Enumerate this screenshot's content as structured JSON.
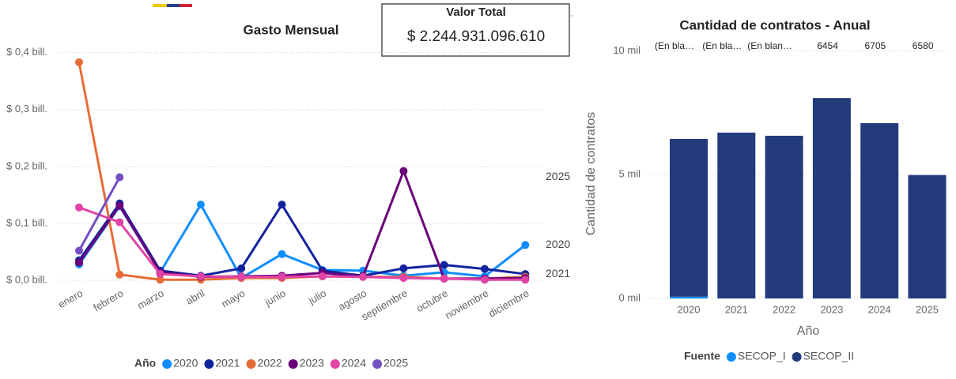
{
  "card": {
    "title": "Valor Total",
    "value": "$ 2.244.931.096.610"
  },
  "chart_data": [
    {
      "type": "line",
      "title": "Gasto Mensual",
      "legend_title": "Año",
      "categories": [
        "enero",
        "febrero",
        "marzo",
        "abril",
        "mayo",
        "junio",
        "julio",
        "agosto",
        "septiembre",
        "octubre",
        "noviembre",
        "diciembre"
      ],
      "ylim": [
        0,
        0.43
      ],
      "yticks": [
        {
          "value": 0,
          "label": "$ 0,0 bill."
        },
        {
          "value": 0.1,
          "label": "$ 0,1 bill."
        },
        {
          "value": 0.2,
          "label": "$ 0,2 bill."
        },
        {
          "value": 0.3,
          "label": "$ 0,3 bill."
        },
        {
          "value": 0.4,
          "label": "$ 0,4 bill."
        }
      ],
      "grid": true,
      "legend": "bottom",
      "series": [
        {
          "name": "2020",
          "color": "#118dff",
          "end_label": true,
          "values": [
            0.028,
            0.13,
            0.014,
            0.133,
            0.004,
            0.046,
            0.018,
            0.017,
            0.008,
            0.014,
            0.007,
            0.062
          ]
        },
        {
          "name": "2021",
          "color": "#12239e",
          "end_label": true,
          "values": [
            0.035,
            0.135,
            0.017,
            0.008,
            0.021,
            0.133,
            0.017,
            0.008,
            0.021,
            0.027,
            0.02,
            0.011
          ]
        },
        {
          "name": "2022",
          "color": "#e66c37",
          "values": [
            0.383,
            0.01,
            0.001,
            0.001,
            0.004,
            0.004,
            0.007,
            0.006,
            0.006,
            0.003,
            0.003,
            0.006
          ]
        },
        {
          "name": "2023",
          "color": "#6b007b",
          "values": [
            0.031,
            0.131,
            0.014,
            0.006,
            0.007,
            0.008,
            0.013,
            0.007,
            0.192,
            0.003,
            0.003,
            0.004
          ]
        },
        {
          "name": "2024",
          "color": "#e044a7",
          "values": [
            0.128,
            0.102,
            0.011,
            0.007,
            0.006,
            0.006,
            0.007,
            0.006,
            0.004,
            0.003,
            0.001,
            0.001
          ]
        },
        {
          "name": "2025",
          "color": "#744ec2",
          "end_label": true,
          "values": [
            0.052,
            0.181,
            null,
            null,
            null,
            null,
            null,
            null,
            null,
            null,
            null,
            null
          ]
        }
      ]
    },
    {
      "type": "bar",
      "stacked": true,
      "title": "Cantidad de contratos - Anual",
      "ylabel": "Cantidad de contratos",
      "xlabel": "Año",
      "legend_title": "Fuente",
      "categories": [
        "2020",
        "2021",
        "2022",
        "2023",
        "2024",
        "2025"
      ],
      "annotations": [
        "(En bla…",
        "(En bla…",
        "(En blan…",
        "6454",
        "6705",
        "6580"
      ],
      "ylim": [
        0,
        10300
      ],
      "yticks": [
        {
          "value": 0,
          "label": "0 mil"
        },
        {
          "value": 5000,
          "label": "5 mil"
        },
        {
          "value": 10000,
          "label": "10 mil"
        }
      ],
      "grid": true,
      "legend": "bottom",
      "series": [
        {
          "name": "SECOP_I",
          "color": "#118dff",
          "values": [
            70,
            0,
            0,
            0,
            0,
            0
          ]
        },
        {
          "name": "SECOP_II",
          "color": "#233a7b",
          "values": [
            6374,
            6698,
            6571,
            8095,
            7079,
            4984
          ]
        }
      ]
    }
  ]
}
